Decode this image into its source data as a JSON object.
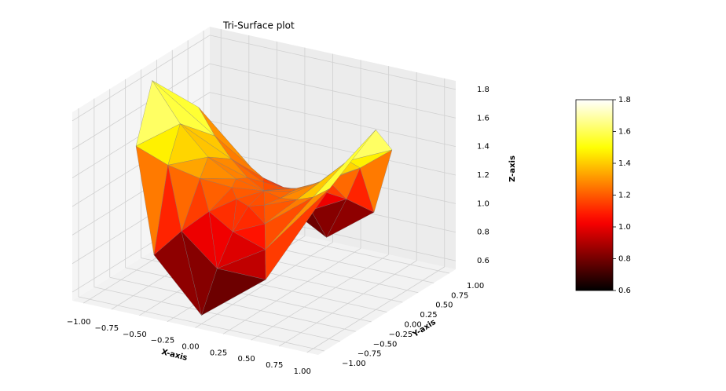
{
  "chart_data": {
    "type": "trisurf",
    "title": "Tri-Surface plot",
    "xlabel": "X-axis",
    "ylabel": "Y-axis",
    "zlabel": "Z-axis",
    "colormap": "hot",
    "xlim": [
      -1.1,
      1.1
    ],
    "ylim": [
      -1.1,
      1.1
    ],
    "zlim": [
      0.54,
      1.86
    ],
    "xticks": [
      {
        "value": -1,
        "label": "−1.00"
      },
      {
        "value": -0.75,
        "label": "−0.75"
      },
      {
        "value": -0.5,
        "label": "−0.50"
      },
      {
        "value": -0.25,
        "label": "−0.25"
      },
      {
        "value": 0,
        "label": "0.00"
      },
      {
        "value": 0.25,
        "label": "0.25"
      },
      {
        "value": 0.5,
        "label": "0.50"
      },
      {
        "value": 0.75,
        "label": "0.75"
      },
      {
        "value": 1,
        "label": "1.00"
      }
    ],
    "yticks": [
      {
        "value": -1,
        "label": "−1.00"
      },
      {
        "value": -0.75,
        "label": "−0.75"
      },
      {
        "value": -0.5,
        "label": "−0.50"
      },
      {
        "value": -0.25,
        "label": "−0.25"
      },
      {
        "value": 0,
        "label": "0.00"
      },
      {
        "value": 0.25,
        "label": "0.25"
      },
      {
        "value": 0.5,
        "label": "0.50"
      },
      {
        "value": 0.75,
        "label": "0.75"
      },
      {
        "value": 1,
        "label": "1.00"
      }
    ],
    "zticks": [
      {
        "value": 0.6,
        "label": "0.6"
      },
      {
        "value": 0.8,
        "label": "0.8"
      },
      {
        "value": 1,
        "label": "1.0"
      },
      {
        "value": 1.2,
        "label": "1.2"
      },
      {
        "value": 1.4,
        "label": "1.4"
      },
      {
        "value": 1.6,
        "label": "1.6"
      },
      {
        "value": 1.8,
        "label": "1.8"
      }
    ],
    "clim": [
      0.6,
      1.8
    ],
    "cbar_ticks": [
      {
        "value": 0.6,
        "label": "0.6"
      },
      {
        "value": 0.8,
        "label": "0.8"
      },
      {
        "value": 1,
        "label": "1.0"
      },
      {
        "value": 1.2,
        "label": "1.2"
      },
      {
        "value": 1.4,
        "label": "1.4"
      },
      {
        "value": 1.6,
        "label": "1.6"
      },
      {
        "value": 1.8,
        "label": "1.8"
      }
    ],
    "center_z": 1.2,
    "radii": [
      0.25,
      0.5,
      0.75,
      1
    ],
    "angles": [
      0,
      30,
      60,
      90,
      120,
      150,
      180,
      210,
      240,
      270,
      300,
      330
    ],
    "z": [
      [
        1.24,
        1.22,
        1.18,
        1.16,
        1.18,
        1.22,
        1.24,
        1.22,
        1.18,
        1.16,
        1.18,
        1.22
      ],
      [
        1.35,
        1.28,
        1.13,
        1.05,
        1.13,
        1.28,
        1.35,
        1.28,
        1.13,
        1.05,
        1.13,
        1.28
      ],
      [
        1.54,
        1.37,
        1.03,
        0.86,
        1.03,
        1.37,
        1.54,
        1.37,
        1.03,
        0.86,
        1.03,
        1.37
      ],
      [
        1.8,
        1.5,
        0.9,
        0.6,
        0.9,
        1.5,
        1.8,
        1.5,
        0.9,
        0.6,
        0.9,
        1.5
      ]
    ]
  }
}
